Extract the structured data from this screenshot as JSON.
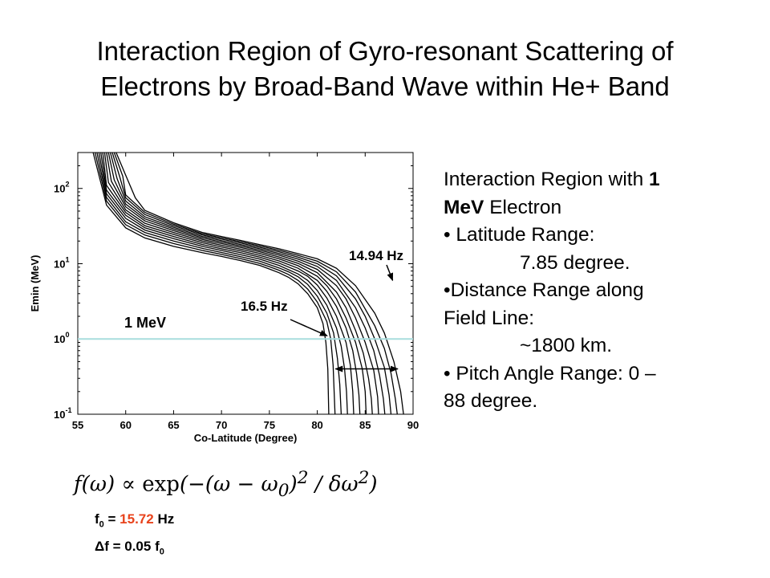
{
  "title_lines": [
    "Interaction Region of Gyro-resonant Scattering of",
    "Electrons by Broad-Band Wave within He+ Band"
  ],
  "chart_data": {
    "type": "line",
    "title": "",
    "xlabel": "Co-Latitude (Degree)",
    "ylabel": "Emin (MeV)",
    "xlim": [
      55,
      90
    ],
    "ylim": [
      0.1,
      300
    ],
    "yscale": "log",
    "xticks": [
      55,
      60,
      65,
      70,
      75,
      80,
      85,
      90
    ],
    "yticks": [
      {
        "value": 0.1,
        "base": "10",
        "exp": "-1"
      },
      {
        "value": 1,
        "base": "10",
        "exp": "0"
      },
      {
        "value": 10,
        "base": "10",
        "exp": "1"
      },
      {
        "value": 100,
        "base": "10",
        "exp": "2"
      }
    ],
    "grid": false,
    "series_count": 13,
    "cutoff_colatitudes": [
      81.2,
      81.85,
      82.5,
      83.15,
      83.8,
      84.45,
      85.1,
      85.75,
      86.4,
      87.05,
      87.7,
      88.35,
      89.0
    ],
    "series": [
      {
        "x": [
          56.6,
          58,
          60,
          62,
          65,
          68,
          70,
          72,
          74,
          75,
          76,
          77,
          78,
          79,
          80,
          80.6,
          80.9,
          81.1,
          81.2
        ],
        "y": [
          300,
          60,
          30,
          22,
          17,
          14,
          12.5,
          11,
          9.5,
          8.5,
          7.6,
          6.6,
          5.4,
          4.0,
          2.6,
          1.6,
          0.9,
          0.4,
          0.1
        ]
      },
      {
        "x": [
          56.8,
          58,
          60,
          62,
          65,
          68,
          70,
          72,
          74,
          75,
          76,
          77,
          78,
          79,
          80,
          81,
          81.4,
          81.65,
          81.85
        ],
        "y": [
          300,
          68,
          33,
          24,
          18.5,
          15,
          13.3,
          11.7,
          10.1,
          9.1,
          8.2,
          7.2,
          6.0,
          4.6,
          3.1,
          1.7,
          1.0,
          0.45,
          0.1
        ]
      },
      {
        "x": [
          57.0,
          58,
          60,
          62,
          65,
          68,
          70,
          72,
          74,
          76,
          77,
          78,
          79,
          80,
          81,
          81.7,
          82.1,
          82.35,
          82.5
        ],
        "y": [
          300,
          76,
          36,
          26,
          20,
          16,
          14.1,
          12.4,
          10.8,
          8.8,
          7.8,
          6.7,
          5.3,
          3.7,
          2.2,
          1.2,
          0.55,
          0.25,
          0.1
        ]
      },
      {
        "x": [
          57.2,
          58,
          60,
          62,
          65,
          68,
          70,
          72,
          74,
          76,
          78,
          79,
          80,
          81,
          82,
          82.5,
          82.85,
          83.05,
          83.15
        ],
        "y": [
          300,
          85,
          40,
          28,
          21.5,
          17,
          15,
          13.2,
          11.5,
          9.5,
          7.3,
          6.0,
          4.4,
          2.8,
          1.4,
          0.8,
          0.4,
          0.2,
          0.1
        ]
      },
      {
        "x": [
          57.4,
          58,
          60,
          62,
          65,
          68,
          70,
          72,
          74,
          76,
          78,
          79,
          80,
          81,
          82,
          83,
          83.45,
          83.7,
          83.8
        ],
        "y": [
          300,
          95,
          44,
          30,
          23,
          18,
          15.8,
          14,
          12.2,
          10.2,
          8.0,
          6.8,
          5.2,
          3.5,
          2.0,
          0.9,
          0.45,
          0.2,
          0.1
        ]
      },
      {
        "x": [
          57.6,
          58,
          60,
          62,
          65,
          68,
          70,
          72,
          74,
          76,
          78,
          80,
          81,
          82,
          83,
          83.7,
          84.1,
          84.35,
          84.45
        ],
        "y": [
          300,
          110,
          48,
          32,
          24.5,
          19,
          16.7,
          14.8,
          12.9,
          10.9,
          8.7,
          6.0,
          4.3,
          2.7,
          1.4,
          0.7,
          0.35,
          0.18,
          0.1
        ]
      },
      {
        "x": [
          57.8,
          58.2,
          60,
          62,
          65,
          68,
          70,
          72,
          74,
          76,
          78,
          80,
          81,
          82,
          83,
          84,
          84.7,
          85.0,
          85.1
        ],
        "y": [
          300,
          120,
          52,
          34.5,
          26,
          20,
          17.6,
          15.6,
          13.7,
          11.6,
          9.4,
          6.8,
          5.1,
          3.4,
          1.9,
          0.9,
          0.4,
          0.2,
          0.1
        ]
      },
      {
        "x": [
          58.0,
          58.5,
          60,
          62,
          65,
          68,
          70,
          72,
          74,
          76,
          78,
          80,
          82,
          83,
          84,
          84.8,
          85.35,
          85.65,
          85.75
        ],
        "y": [
          300,
          125,
          57,
          37,
          27.5,
          21,
          18.5,
          16.4,
          14.4,
          12.3,
          10.1,
          7.6,
          4.2,
          2.6,
          1.3,
          0.65,
          0.3,
          0.16,
          0.1
        ]
      },
      {
        "x": [
          58.2,
          58.8,
          60,
          62,
          65,
          68,
          70,
          72,
          74,
          76,
          78,
          80,
          82,
          83,
          84,
          85,
          85.9,
          86.3,
          86.4
        ],
        "y": [
          300,
          130,
          62,
          39.5,
          29,
          22,
          19.4,
          17.2,
          15.1,
          13.0,
          10.8,
          8.4,
          5.1,
          3.4,
          1.9,
          0.9,
          0.38,
          0.17,
          0.1
        ]
      },
      {
        "x": [
          58.4,
          59.1,
          60,
          62,
          65,
          68,
          70,
          72,
          74,
          76,
          78,
          80,
          82,
          84,
          85,
          85.9,
          86.5,
          86.9,
          87.05
        ],
        "y": [
          300,
          135,
          68,
          42,
          30.5,
          23,
          20.3,
          18.0,
          15.8,
          13.7,
          11.5,
          9.2,
          6.0,
          2.6,
          1.4,
          0.7,
          0.33,
          0.16,
          0.1
        ]
      },
      {
        "x": [
          58.6,
          59.4,
          60,
          62,
          65,
          68,
          70,
          72,
          74,
          76,
          78,
          80,
          82,
          84,
          85,
          86,
          87.0,
          87.5,
          87.7
        ],
        "y": [
          300,
          140,
          75,
          45,
          32,
          24,
          21.2,
          18.8,
          16.5,
          14.4,
          12.2,
          10.0,
          6.9,
          3.4,
          2.0,
          1.0,
          0.42,
          0.18,
          0.1
        ]
      },
      {
        "x": [
          58.8,
          59.7,
          60,
          62,
          65,
          68,
          70,
          72,
          74,
          76,
          78,
          80,
          82,
          84,
          86,
          87,
          87.7,
          88.15,
          88.35
        ],
        "y": [
          300,
          145,
          82,
          48,
          33.5,
          25,
          22.1,
          19.6,
          17.2,
          15.1,
          12.9,
          10.8,
          7.8,
          4.2,
          1.5,
          0.75,
          0.35,
          0.16,
          0.1
        ]
      },
      {
        "x": [
          59.0,
          60,
          61,
          62,
          65,
          68,
          70,
          72,
          74,
          76,
          78,
          80,
          82,
          84,
          86,
          87,
          88,
          88.7,
          89.0
        ],
        "y": [
          300,
          150,
          75,
          51,
          35,
          26,
          23,
          20.4,
          17.9,
          15.8,
          13.6,
          11.6,
          8.7,
          5.1,
          2.2,
          1.2,
          0.5,
          0.2,
          0.1
        ]
      }
    ],
    "reference_line": {
      "y": 1,
      "label": "1 MeV",
      "color": "#a8dede"
    },
    "annotations": [
      {
        "text": "14.94 Hz",
        "target_x": 87.7,
        "target_y": 1
      },
      {
        "text": "16.5 Hz",
        "target_x": 81.2,
        "target_y": 1
      }
    ],
    "range_arrow": {
      "from": 81.9,
      "to": 88.4,
      "y": 0.4
    }
  },
  "panel": {
    "intro_a": "Interaction Region with ",
    "intro_b": "1",
    "intro_c": "MeV",
    "intro_d": " Electron",
    "b1": "• Latitude Range:",
    "b1v": "7.85 degree.",
    "b2a": "•Distance Range along",
    "b2b": "Field Line:",
    "b2v": "~1800 km.",
    "b3a": "• Pitch Angle Range: 0 –",
    "b3b": "88 degree."
  },
  "formula": {
    "lhs": "f(ω) ∝ ",
    "exp": "exp",
    "rest": "(−(ω − ω",
    "sub0": "0",
    "close": ")",
    "sq": "2",
    "div": " / δω",
    "sq2": "2",
    "end": ")"
  },
  "params": {
    "f0_a": "f",
    "f0_sub": "0",
    "f0_eq": " = ",
    "f0_val": "15.72",
    "f0_unit": " Hz",
    "df_a": "Δf = 0.05 f",
    "df_sub": "0"
  },
  "colors": {
    "curves": "#000000",
    "reference_line": "#a8dede",
    "highlight": "#e8431c"
  }
}
